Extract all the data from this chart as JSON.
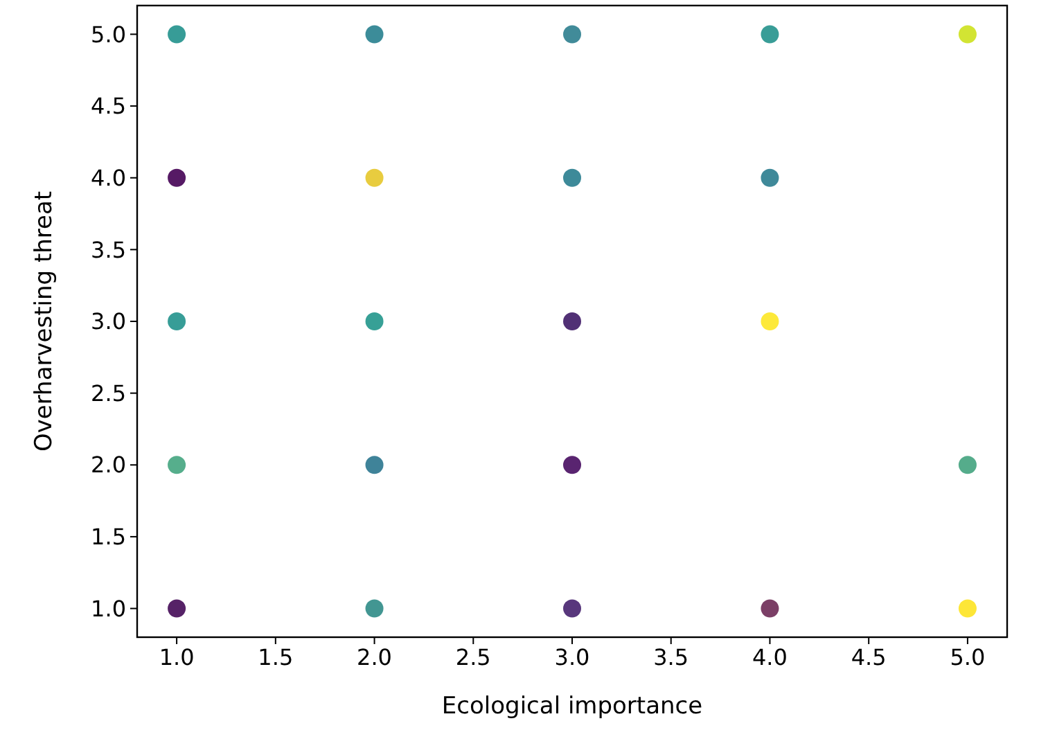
{
  "chart_data": {
    "type": "scatter",
    "xlabel": "Ecological importance",
    "ylabel": "Overharvesting threat",
    "xlim": [
      0.8,
      5.2
    ],
    "ylim": [
      0.8,
      5.2
    ],
    "xticks": [
      {
        "value": 1,
        "label": "1.0"
      },
      {
        "value": 1.5,
        "label": "1.5"
      },
      {
        "value": 2,
        "label": "2.0"
      },
      {
        "value": 2.5,
        "label": "2.5"
      },
      {
        "value": 3,
        "label": "3.0"
      },
      {
        "value": 3.5,
        "label": "3.5"
      },
      {
        "value": 4,
        "label": "4.0"
      },
      {
        "value": 4.5,
        "label": "4.5"
      },
      {
        "value": 5,
        "label": "5.0"
      }
    ],
    "yticks": [
      {
        "value": 1,
        "label": "1.0"
      },
      {
        "value": 1.5,
        "label": "1.5"
      },
      {
        "value": 2,
        "label": "2.0"
      },
      {
        "value": 2.5,
        "label": "2.5"
      },
      {
        "value": 3,
        "label": "3.0"
      },
      {
        "value": 3.5,
        "label": "3.5"
      },
      {
        "value": 4,
        "label": "4.0"
      },
      {
        "value": 4.5,
        "label": "4.5"
      },
      {
        "value": 5,
        "label": "5.0"
      }
    ],
    "grid": false,
    "marker": "circle",
    "series": [
      {
        "x": [
          1,
          2,
          3,
          4,
          5,
          1,
          2,
          3,
          4,
          1,
          2,
          3,
          4,
          1,
          2,
          3,
          5,
          1,
          2,
          3,
          4,
          5
        ],
        "values": [
          5,
          5,
          5,
          5,
          5,
          4,
          4,
          4,
          4,
          3,
          3,
          3,
          3,
          2,
          2,
          2,
          2,
          1,
          1,
          1,
          1,
          1
        ],
        "colors": [
          "#21918c",
          "#277f8e",
          "#2c7e8e",
          "#23928c",
          "#cde11d",
          "#440154",
          "#e6c72a",
          "#287d8e",
          "#2a7c8e",
          "#21928c",
          "#21968b",
          "#3e1a66",
          "#fde725",
          "#44a57f",
          "#2a768e",
          "#470c61",
          "#42a37e",
          "#440a57",
          "#2e8b86",
          "#46216e",
          "#6d2a55",
          "#fde321"
        ]
      }
    ]
  }
}
